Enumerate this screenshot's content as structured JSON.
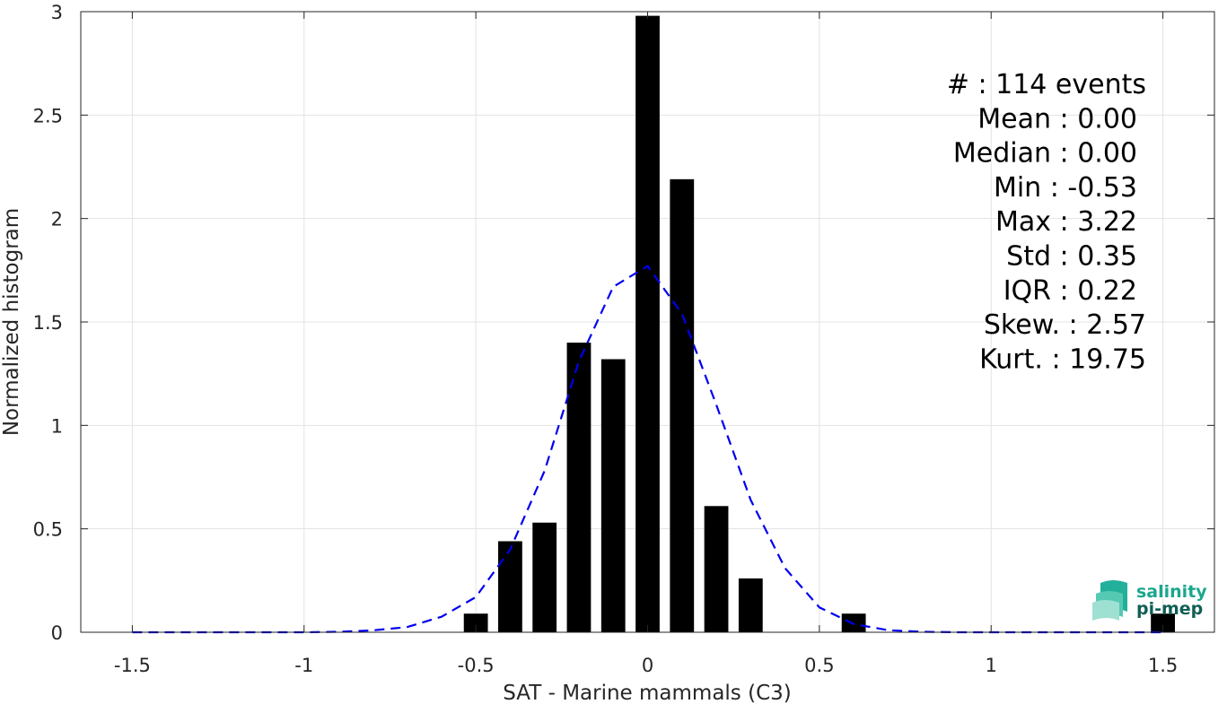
{
  "chart_data": {
    "type": "bar",
    "xlabel": "SAT - Marine mammals (C3)",
    "ylabel": "Normalized histogram",
    "xlim": [
      -1.65,
      1.65
    ],
    "ylim": [
      0,
      3
    ],
    "grid": true,
    "xticks": [
      -1.5,
      -1,
      -0.5,
      0,
      0.5,
      1,
      1.5
    ],
    "xtick_labels": [
      "-1.5",
      "-1",
      "-0.5",
      "0",
      "0.5",
      "1",
      "1.5"
    ],
    "yticks": [
      0,
      0.5,
      1,
      1.5,
      2,
      2.5,
      3
    ],
    "ytick_labels": [
      "0",
      "0.5",
      "1",
      "1.5",
      "2",
      "2.5",
      "3"
    ],
    "bar_width": 0.07,
    "bar_color": "#000000",
    "bars": [
      {
        "x": -0.5,
        "y": 0.09
      },
      {
        "x": -0.4,
        "y": 0.44
      },
      {
        "x": -0.3,
        "y": 0.53
      },
      {
        "x": -0.2,
        "y": 1.4
      },
      {
        "x": -0.1,
        "y": 1.32
      },
      {
        "x": 0.0,
        "y": 2.98
      },
      {
        "x": 0.1,
        "y": 2.19
      },
      {
        "x": 0.2,
        "y": 0.61
      },
      {
        "x": 0.3,
        "y": 0.26
      },
      {
        "x": 0.6,
        "y": 0.09
      },
      {
        "x": 1.5,
        "y": 0.09
      }
    ],
    "fit_curve": {
      "style": "dashed",
      "color": "#0000ee",
      "x": [
        -1.5,
        -1.4,
        -1.3,
        -1.2,
        -1.1,
        -1.0,
        -0.9,
        -0.8,
        -0.7,
        -0.6,
        -0.5,
        -0.4,
        -0.3,
        -0.2,
        -0.1,
        0.0,
        0.1,
        0.2,
        0.3,
        0.4,
        0.5,
        0.6,
        0.7,
        0.8,
        0.9,
        1.0,
        1.1,
        1.2,
        1.3,
        1.4,
        1.5
      ],
      "y": [
        0,
        0,
        0,
        0,
        0,
        0,
        0.002,
        0.009,
        0.025,
        0.075,
        0.17,
        0.4,
        0.78,
        1.31,
        1.67,
        1.77,
        1.54,
        1.1,
        0.64,
        0.31,
        0.12,
        0.04,
        0.01,
        0.002,
        0,
        0,
        0,
        0,
        0,
        0,
        0
      ]
    },
    "stats": [
      {
        "label": "#  ",
        "value": ": 114 events"
      },
      {
        "label": "Mean ",
        "value": ": 0.00"
      },
      {
        "label": "Median ",
        "value": ": 0.00"
      },
      {
        "label": "Min ",
        "value": ": -0.53"
      },
      {
        "label": "Max ",
        "value": ": 3.22"
      },
      {
        "label": "Std ",
        "value": ": 0.35"
      },
      {
        "label": "IQR ",
        "value": ": 0.22"
      },
      {
        "label": "Skew. ",
        "value": ": 2.57"
      },
      {
        "label": "Kurt. ",
        "value": ": 19.75"
      }
    ]
  },
  "logo": {
    "line1": "salinity",
    "line2": "pi-mep",
    "color1": "#1aa78e",
    "color2": "#0f5f55"
  }
}
